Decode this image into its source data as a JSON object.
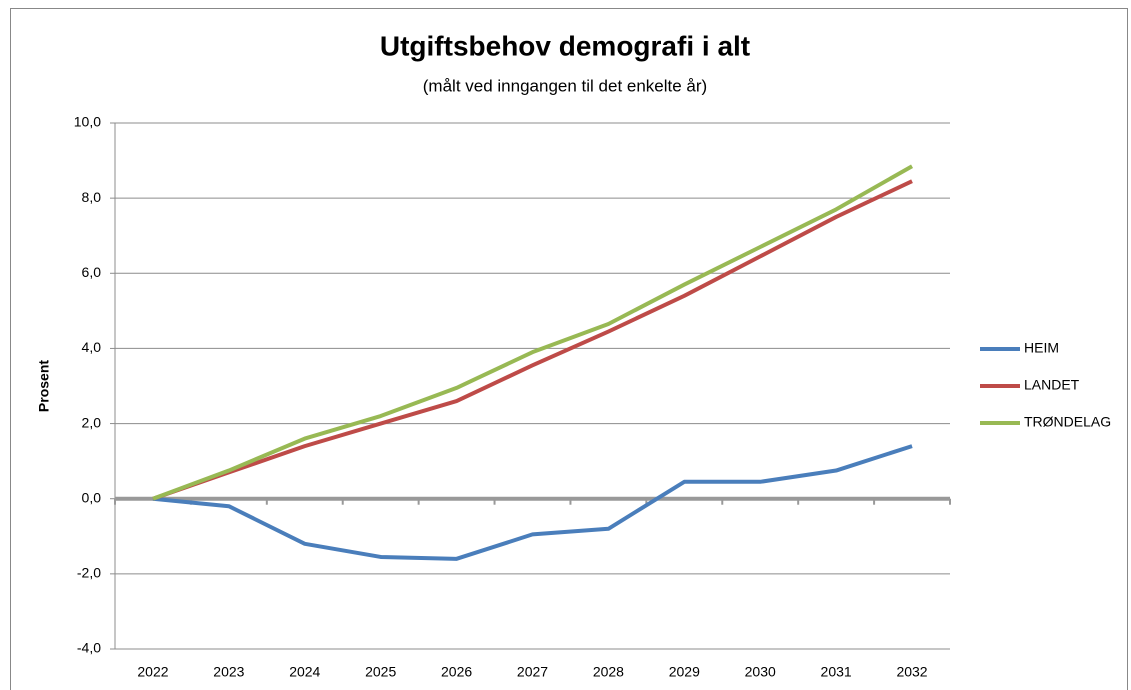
{
  "chart_data": {
    "type": "line",
    "title": "Utgiftsbehov demografi i alt",
    "subtitle": "(målt ved inngangen til det enkelte år)",
    "y_label": "Prosent",
    "categories": [
      "2022",
      "2023",
      "2024",
      "2025",
      "2026",
      "2027",
      "2028",
      "2029",
      "2030",
      "2031",
      "2032"
    ],
    "series": [
      {
        "name": "HEIM",
        "color": "#4a7ebb",
        "values": [
          0,
          -0.2,
          -1.2,
          -1.55,
          -1.6,
          -0.95,
          -0.8,
          0.45,
          0.45,
          0.75,
          1.4
        ]
      },
      {
        "name": "LANDET",
        "color": "#be4b48",
        "values": [
          0,
          0.7,
          1.4,
          2.0,
          2.6,
          3.55,
          4.45,
          5.4,
          6.45,
          7.5,
          8.45
        ]
      },
      {
        "name": "TRØNDELAG",
        "color": "#98b954",
        "values": [
          0,
          0.75,
          1.6,
          2.2,
          2.95,
          3.9,
          4.65,
          5.7,
          6.7,
          7.7,
          8.85
        ]
      }
    ],
    "ylim": [
      -4,
      10
    ],
    "yticks": [
      {
        "value": -4,
        "label": "-4,0"
      },
      {
        "value": -2,
        "label": "-2,0"
      },
      {
        "value": 0,
        "label": "0,0"
      },
      {
        "value": 2,
        "label": "2,0"
      },
      {
        "value": 4,
        "label": "4,0"
      },
      {
        "value": 6,
        "label": "6,0"
      },
      {
        "value": 8,
        "label": "8,0"
      },
      {
        "value": 10,
        "label": "10,0"
      }
    ],
    "grid": true,
    "legend": "right"
  }
}
